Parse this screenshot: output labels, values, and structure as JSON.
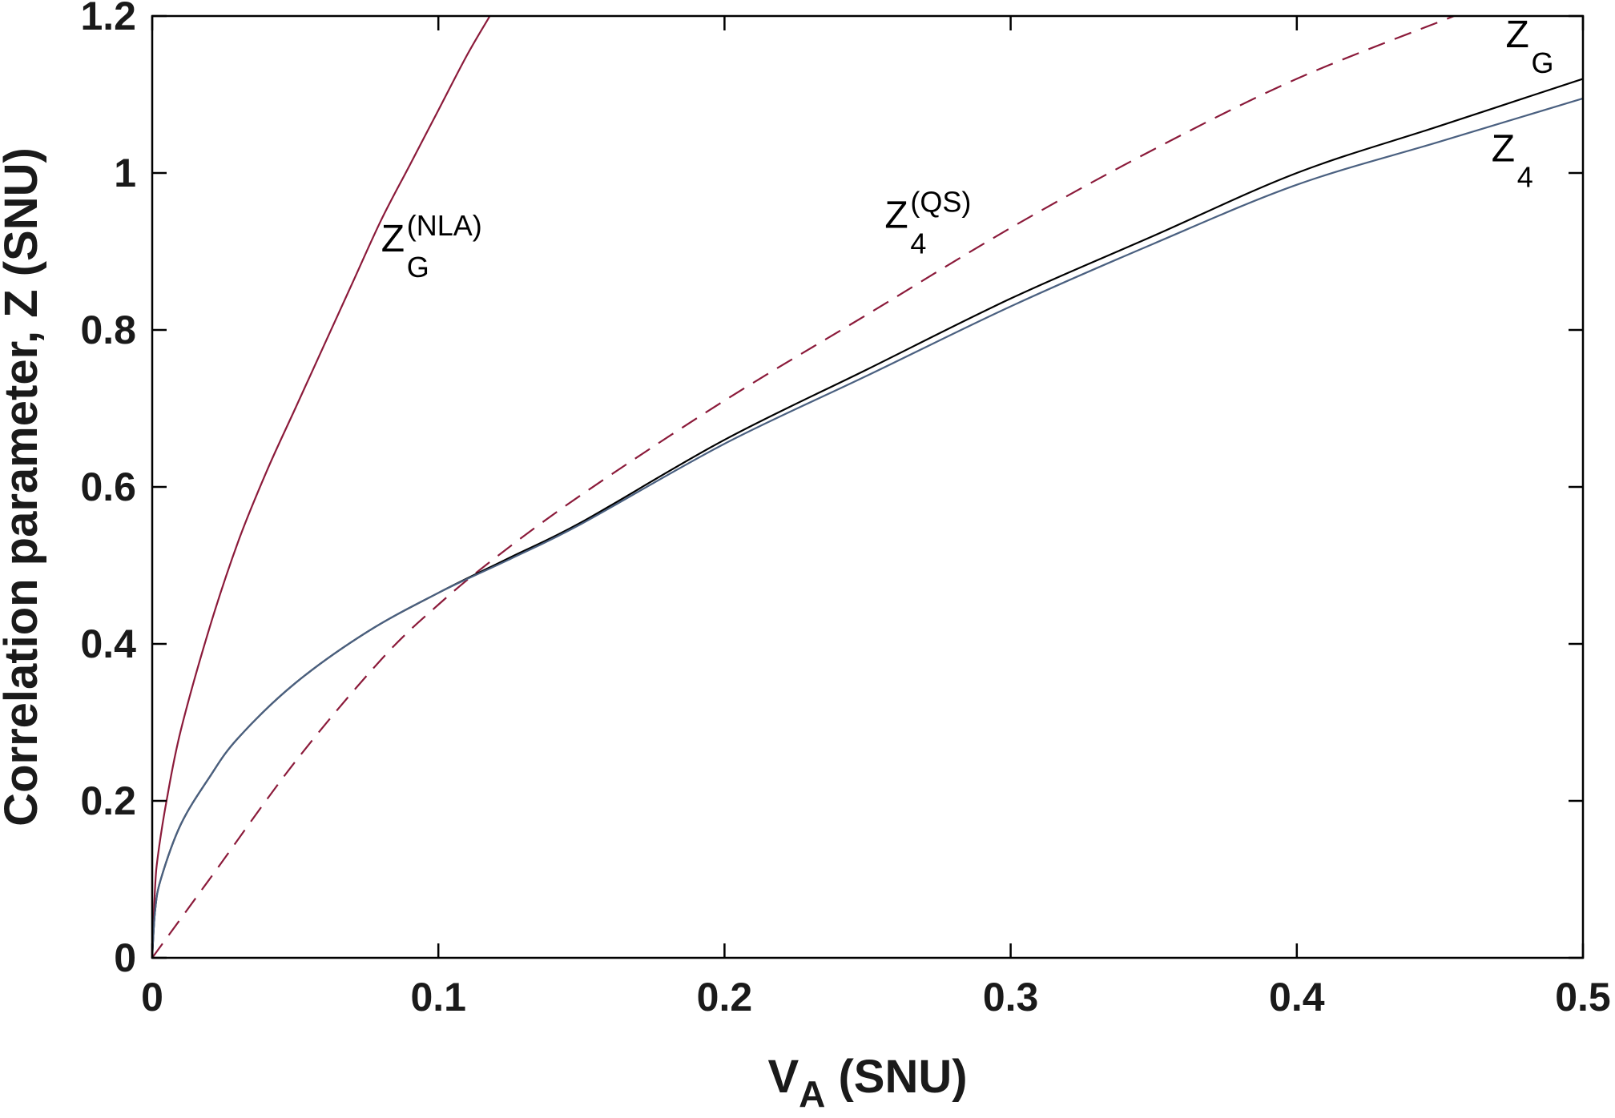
{
  "chart_data": {
    "type": "line",
    "title": "",
    "xlabel": {
      "main": "V",
      "sub": "A",
      "rest": " (SNU)"
    },
    "ylabel": "Correlation parameter, Z (SNU)",
    "xlim": [
      0,
      0.5
    ],
    "ylim": [
      0,
      1.2
    ],
    "x_ticks": [
      "0",
      "0.1",
      "0.2",
      "0.3",
      "0.4",
      "0.5"
    ],
    "y_ticks": [
      "0",
      "0.2",
      "0.4",
      "0.6",
      "0.8",
      "1",
      "1.2"
    ],
    "grid": false,
    "legend": "none",
    "series": [
      {
        "name": "Z_G^(NLA)",
        "color": "#8b1a3a",
        "style": "solid",
        "x": [
          0,
          0.001,
          0.002,
          0.005,
          0.01,
          0.02,
          0.03,
          0.04,
          0.05,
          0.06,
          0.07,
          0.08,
          0.09,
          0.1,
          0.11,
          0.118
        ],
        "y": [
          0,
          0.09,
          0.13,
          0.2,
          0.29,
          0.42,
          0.53,
          0.62,
          0.7,
          0.78,
          0.86,
          0.94,
          1.01,
          1.08,
          1.15,
          1.2
        ]
      },
      {
        "name": "Z_4^(QS)",
        "color": "#8b1a3a",
        "style": "dashed",
        "x": [
          0,
          0.02,
          0.05,
          0.08,
          0.1,
          0.12,
          0.15,
          0.2,
          0.25,
          0.3,
          0.35,
          0.4,
          0.455
        ],
        "y": [
          0,
          0.1,
          0.25,
          0.38,
          0.45,
          0.51,
          0.59,
          0.71,
          0.82,
          0.93,
          1.03,
          1.12,
          1.2
        ]
      },
      {
        "name": "Z_G",
        "color": "#000000",
        "style": "solid",
        "x": [
          0,
          0.001,
          0.003,
          0.01,
          0.02,
          0.03,
          0.05,
          0.075,
          0.1,
          0.125,
          0.15,
          0.2,
          0.25,
          0.3,
          0.35,
          0.4,
          0.45,
          0.5
        ],
        "y": [
          0,
          0.06,
          0.1,
          0.17,
          0.23,
          0.28,
          0.35,
          0.415,
          0.465,
          0.51,
          0.555,
          0.66,
          0.75,
          0.84,
          0.92,
          1.0,
          1.06,
          1.12
        ]
      },
      {
        "name": "Z_4",
        "color": "#4a6080",
        "style": "solid",
        "x": [
          0,
          0.001,
          0.003,
          0.01,
          0.02,
          0.03,
          0.05,
          0.075,
          0.1,
          0.125,
          0.15,
          0.2,
          0.25,
          0.3,
          0.35,
          0.4,
          0.45,
          0.5
        ],
        "y": [
          0,
          0.06,
          0.1,
          0.17,
          0.23,
          0.28,
          0.35,
          0.415,
          0.465,
          0.508,
          0.553,
          0.655,
          0.742,
          0.83,
          0.91,
          0.985,
          1.04,
          1.095
        ]
      }
    ],
    "annotations": [
      {
        "id": "nla",
        "main": "Z",
        "sub": "G",
        "sup": "(NLA)",
        "x": 0.08,
        "y": 0.9
      },
      {
        "id": "qs",
        "main": "Z",
        "sub": "4",
        "sup": "(QS)",
        "x": 0.256,
        "y": 0.93
      },
      {
        "id": "zg",
        "main": "Z",
        "sub": "G",
        "sup": "",
        "x": 0.473,
        "y": 1.16
      },
      {
        "id": "z4",
        "main": "Z",
        "sub": "4",
        "sup": "",
        "x": 0.468,
        "y": 1.015
      }
    ]
  }
}
